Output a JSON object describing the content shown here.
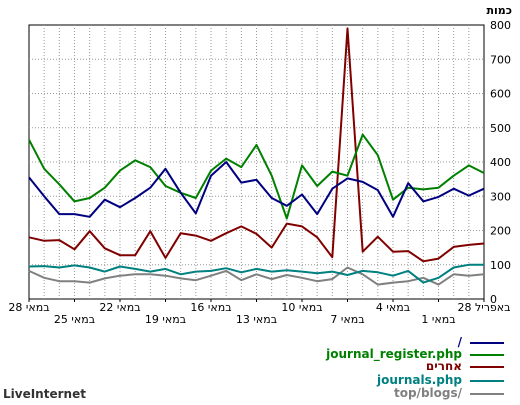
{
  "chart_data": {
    "type": "line",
    "ylabel": "כמות",
    "ylim": [
      0,
      800
    ],
    "yticks": [
      0,
      100,
      200,
      300,
      400,
      500,
      600,
      700,
      800
    ],
    "x_tick_labels": [
      "28 במאי",
      "25 במאי",
      "22 במאי",
      "19 במאי",
      "16 במאי",
      "13 במאי",
      "10 במאי",
      "7 במאי",
      "4 במאי",
      "1 במאי",
      "28 באפריל"
    ],
    "grid": true,
    "legend_position": "bottom-right",
    "series": [
      {
        "name": "/",
        "color": "#000080",
        "values": [
          355,
          300,
          248,
          248,
          240,
          290,
          268,
          295,
          325,
          380,
          310,
          250,
          360,
          400,
          340,
          348,
          295,
          272,
          305,
          248,
          322,
          352,
          342,
          318,
          240,
          338,
          285,
          298,
          322,
          302,
          322
        ]
      },
      {
        "name": "journal_register.php",
        "color": "#008000",
        "values": [
          465,
          380,
          335,
          285,
          295,
          325,
          375,
          405,
          385,
          330,
          310,
          295,
          375,
          410,
          385,
          450,
          360,
          235,
          390,
          330,
          372,
          360,
          480,
          420,
          290,
          325,
          320,
          325,
          360,
          390,
          368
        ]
      },
      {
        "name": "אחרים",
        "color": "#800000",
        "values": [
          180,
          170,
          172,
          145,
          198,
          148,
          128,
          128,
          198,
          120,
          192,
          185,
          170,
          192,
          212,
          190,
          150,
          220,
          212,
          180,
          122,
          790,
          138,
          182,
          138,
          140,
          110,
          118,
          152,
          158,
          162
        ]
      },
      {
        "name": "journals.php",
        "color": "#008080",
        "values": [
          95,
          96,
          92,
          98,
          92,
          80,
          95,
          88,
          80,
          88,
          72,
          80,
          82,
          90,
          78,
          88,
          80,
          84,
          80,
          75,
          80,
          70,
          82,
          78,
          68,
          82,
          48,
          62,
          92,
          100,
          100
        ]
      },
      {
        "name": "top/blogs/",
        "color": "#808080",
        "values": [
          82,
          62,
          52,
          52,
          48,
          60,
          68,
          72,
          72,
          68,
          60,
          55,
          68,
          82,
          55,
          72,
          58,
          70,
          62,
          52,
          58,
          92,
          72,
          42,
          48,
          52,
          62,
          42,
          72,
          68,
          72
        ]
      }
    ]
  },
  "footer": {
    "brand": "LiveInternet"
  }
}
